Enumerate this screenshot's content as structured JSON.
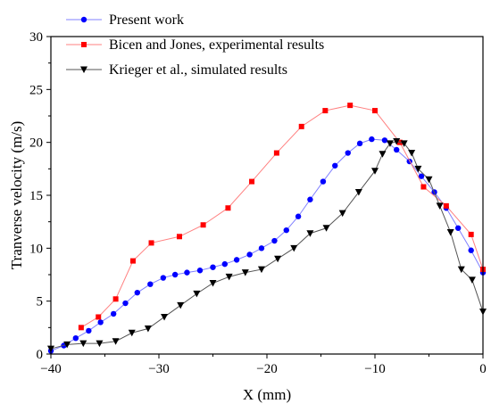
{
  "chart_data": {
    "type": "line",
    "xlabel": "X (mm)",
    "ylabel": "Tranverse velocity (m/s)",
    "xlim": [
      -40,
      0
    ],
    "ylim": [
      0,
      30
    ],
    "xticks": [
      -40,
      -30,
      -20,
      -10,
      0
    ],
    "yticks": [
      0,
      5,
      10,
      15,
      20,
      25,
      30
    ],
    "grid": false,
    "legend_position": "top-left",
    "series": [
      {
        "name": "Present work",
        "color": "#0000ff",
        "line_color": "#8080ff",
        "marker": "circle",
        "x": [
          -40,
          -38.8,
          -37.7,
          -36.5,
          -35.4,
          -34.2,
          -33.1,
          -32,
          -30.8,
          -29.6,
          -28.5,
          -27.4,
          -26.2,
          -25,
          -23.9,
          -22.8,
          -21.6,
          -20.5,
          -19.3,
          -18.2,
          -17.1,
          -16,
          -14.8,
          -13.7,
          -12.5,
          -11.4,
          -10.3,
          -9.1,
          -8,
          -6.8,
          -5.7,
          -4.5,
          -3.4,
          -2.3,
          -1.1,
          0
        ],
        "y": [
          0.3,
          0.8,
          1.5,
          2.2,
          3.0,
          3.8,
          4.8,
          5.8,
          6.6,
          7.2,
          7.5,
          7.7,
          7.9,
          8.2,
          8.5,
          8.9,
          9.4,
          10.0,
          10.7,
          11.7,
          13.0,
          14.6,
          16.3,
          17.8,
          19.0,
          19.9,
          20.3,
          20.2,
          19.3,
          18.2,
          16.8,
          15.3,
          13.8,
          11.9,
          9.8,
          7.7
        ]
      },
      {
        "name": "Bicen and Jones, experimental results",
        "color": "#ff0000",
        "line_color": "#ff8080",
        "marker": "square",
        "x": [
          -37.2,
          -35.6,
          -34,
          -32.4,
          -30.7,
          -28.1,
          -25.9,
          -23.6,
          -21.4,
          -19.1,
          -16.8,
          -14.6,
          -12.3,
          -10,
          -7.7,
          -5.5,
          -3.4,
          -1.1,
          0
        ],
        "y": [
          2.5,
          3.5,
          5.2,
          8.8,
          10.5,
          11.1,
          12.2,
          13.8,
          16.3,
          19.0,
          21.5,
          23.0,
          23.5,
          23.0,
          20.0,
          15.8,
          14.0,
          11.3,
          8.0
        ]
      },
      {
        "name": "Krieger et al., simulated results",
        "color": "#000000",
        "line_color": "#555555",
        "marker": "triangle-down",
        "x": [
          -40,
          -38.5,
          -37,
          -35.5,
          -34,
          -32.5,
          -31,
          -29.5,
          -28,
          -26.5,
          -25,
          -23.5,
          -22,
          -20.5,
          -19,
          -17.5,
          -16,
          -14.5,
          -13,
          -11.5,
          -10,
          -9.3,
          -8.6,
          -8,
          -7.3,
          -6.6,
          -6,
          -5,
          -4,
          -3,
          -2,
          -1,
          0
        ],
        "y": [
          0.5,
          0.9,
          1.0,
          1.0,
          1.2,
          2.0,
          2.4,
          3.5,
          4.6,
          5.7,
          6.7,
          7.3,
          7.7,
          8.0,
          9.0,
          10.0,
          11.4,
          11.9,
          13.3,
          15.3,
          17.3,
          18.9,
          19.9,
          20.1,
          19.9,
          19.0,
          17.5,
          16.5,
          14.0,
          11.5,
          8.0,
          7.0,
          4.0
        ]
      }
    ]
  }
}
